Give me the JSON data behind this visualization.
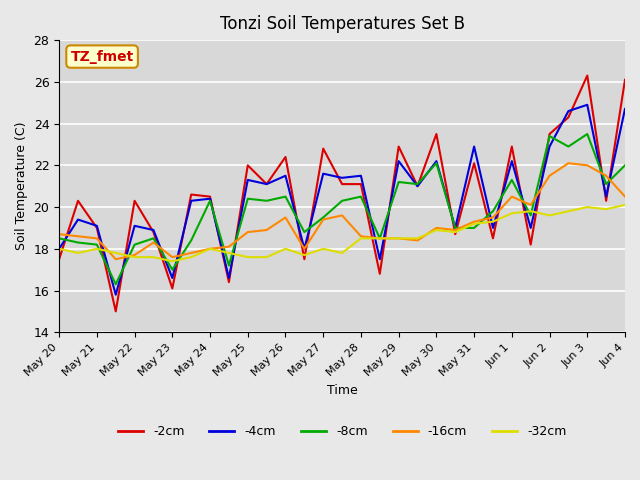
{
  "title": "Tonzi Soil Temperatures Set B",
  "xlabel": "Time",
  "ylabel": "Soil Temperature (C)",
  "ylim": [
    14,
    28
  ],
  "xlim": [
    0,
    15
  ],
  "xtick_labels": [
    "May 20",
    "May 21",
    "May 22",
    "May 23",
    "May 24",
    "May 25",
    "May 26",
    "May 27",
    "May 28",
    "May 29",
    "May 30",
    "May 31",
    "Jun 1",
    "Jun 2",
    "Jun 3",
    "Jun 4"
  ],
  "xtick_positions": [
    0,
    1,
    2,
    3,
    4,
    5,
    6,
    7,
    8,
    9,
    10,
    11,
    12,
    13,
    14,
    15
  ],
  "annotation_text": "TZ_fmet",
  "annotation_color": "#cc0000",
  "annotation_bg": "#ffffcc",
  "annotation_border": "#cc8800",
  "lines": {
    "-2cm": {
      "color": "#dd0000",
      "linewidth": 1.5,
      "data_x": [
        0,
        0.5,
        1,
        1.5,
        2,
        2.5,
        3,
        3.5,
        4,
        4.5,
        5,
        5.5,
        6,
        6.5,
        7,
        7.5,
        8,
        8.5,
        9,
        9.5,
        10,
        10.5,
        11,
        11.5,
        12,
        12.5,
        13,
        13.5,
        14,
        14.5,
        15
      ],
      "data_y": [
        17.5,
        20.3,
        19.0,
        15.0,
        20.3,
        18.8,
        16.1,
        20.6,
        20.5,
        16.4,
        22.0,
        21.1,
        22.4,
        17.5,
        22.8,
        21.1,
        21.1,
        16.8,
        22.9,
        21.0,
        23.5,
        18.7,
        22.1,
        18.5,
        22.9,
        18.2,
        23.5,
        24.3,
        26.3,
        20.3,
        26.1
      ]
    },
    "-4cm": {
      "color": "#0000dd",
      "linewidth": 1.5,
      "data_x": [
        0,
        0.5,
        1,
        1.5,
        2,
        2.5,
        3,
        3.5,
        4,
        4.5,
        5,
        5.5,
        6,
        6.5,
        7,
        7.5,
        8,
        8.5,
        9,
        9.5,
        10,
        10.5,
        11,
        11.5,
        12,
        12.5,
        13,
        13.5,
        14,
        14.5,
        15
      ],
      "data_y": [
        18.0,
        19.4,
        19.1,
        15.8,
        19.1,
        18.9,
        16.6,
        20.3,
        20.4,
        16.6,
        21.3,
        21.1,
        21.5,
        18.0,
        21.6,
        21.4,
        21.5,
        17.5,
        22.2,
        21.0,
        22.2,
        19.0,
        22.9,
        19.0,
        22.2,
        19.0,
        22.9,
        24.6,
        24.9,
        20.5,
        24.7
      ]
    },
    "-8cm": {
      "color": "#00aa00",
      "linewidth": 1.5,
      "data_x": [
        0,
        0.5,
        1,
        1.5,
        2,
        2.5,
        3,
        3.5,
        4,
        4.5,
        5,
        5.5,
        6,
        6.5,
        7,
        7.5,
        8,
        8.5,
        9,
        9.5,
        10,
        10.5,
        11,
        11.5,
        12,
        12.5,
        13,
        13.5,
        14,
        14.5,
        15
      ],
      "data_y": [
        18.5,
        18.3,
        18.2,
        16.3,
        18.2,
        18.5,
        17.0,
        18.4,
        20.3,
        17.2,
        20.4,
        20.3,
        20.5,
        18.8,
        19.5,
        20.3,
        20.5,
        18.5,
        21.2,
        21.1,
        22.1,
        19.0,
        19.0,
        19.8,
        21.3,
        19.6,
        23.4,
        22.9,
        23.5,
        21.1,
        22.0
      ]
    },
    "-16cm": {
      "color": "#ff8800",
      "linewidth": 1.5,
      "data_x": [
        0,
        0.5,
        1,
        1.5,
        2,
        2.5,
        3,
        3.5,
        4,
        4.5,
        5,
        5.5,
        6,
        6.5,
        7,
        7.5,
        8,
        8.5,
        9,
        9.5,
        10,
        10.5,
        11,
        11.5,
        12,
        12.5,
        13,
        13.5,
        14,
        14.5,
        15
      ],
      "data_y": [
        18.7,
        18.6,
        18.5,
        17.5,
        17.7,
        18.3,
        17.6,
        17.8,
        18.0,
        18.1,
        18.8,
        18.9,
        19.5,
        18.0,
        19.4,
        19.6,
        18.6,
        18.5,
        18.5,
        18.4,
        19.0,
        18.9,
        19.3,
        19.5,
        20.5,
        20.1,
        21.5,
        22.1,
        22.0,
        21.5,
        20.5
      ]
    },
    "-32cm": {
      "color": "#dddd00",
      "linewidth": 1.5,
      "data_x": [
        0,
        0.5,
        1,
        1.5,
        2,
        2.5,
        3,
        3.5,
        4,
        4.5,
        5,
        5.5,
        6,
        6.5,
        7,
        7.5,
        8,
        8.5,
        9,
        9.5,
        10,
        10.5,
        11,
        11.5,
        12,
        12.5,
        13,
        13.5,
        14,
        14.5,
        15
      ],
      "data_y": [
        18.0,
        17.8,
        18.0,
        17.8,
        17.6,
        17.6,
        17.4,
        17.6,
        18.0,
        17.8,
        17.6,
        17.6,
        18.0,
        17.7,
        18.0,
        17.8,
        18.5,
        18.5,
        18.5,
        18.5,
        18.9,
        18.8,
        19.2,
        19.3,
        19.7,
        19.8,
        19.6,
        19.8,
        20.0,
        19.9,
        20.1
      ]
    }
  },
  "legend_labels": [
    "-2cm",
    "-4cm",
    "-8cm",
    "-16cm",
    "-32cm"
  ],
  "legend_colors": [
    "#dd0000",
    "#0000dd",
    "#00aa00",
    "#ff8800",
    "#dddd00"
  ],
  "bg_color": "#e8e8e8",
  "plot_bg_color": "#d8d8d8",
  "grid_color": "#ffffff",
  "yticks": [
    14,
    16,
    18,
    20,
    22,
    24,
    26,
    28
  ]
}
